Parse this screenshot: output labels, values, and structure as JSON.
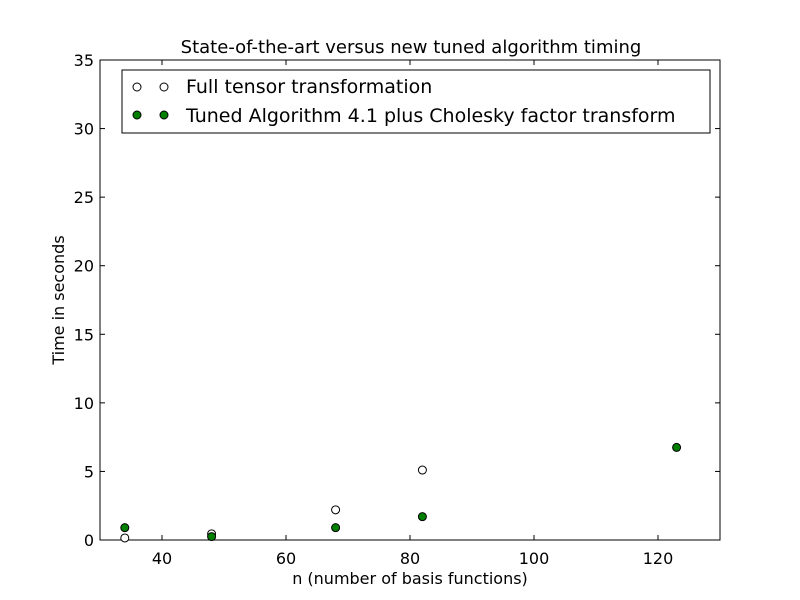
{
  "chart_data": {
    "type": "scatter",
    "title": "State-of-the-art versus new tuned algorithm timing",
    "xlabel": "n (number of basis functions)",
    "ylabel": "Time in seconds",
    "xlim": [
      30,
      130
    ],
    "ylim": [
      0,
      35
    ],
    "xticks": [
      40,
      60,
      80,
      100,
      120
    ],
    "yticks": [
      0,
      5,
      10,
      15,
      20,
      25,
      30,
      35
    ],
    "grid": false,
    "legend_position": "top-left",
    "series": [
      {
        "name": "Full tensor transformation",
        "marker_fill": "#ffffff",
        "marker_edge": "#000000",
        "points": [
          {
            "x": 34,
            "y": 0.15
          },
          {
            "x": 48,
            "y": 0.45
          },
          {
            "x": 68,
            "y": 2.2
          },
          {
            "x": 82,
            "y": 5.1
          }
        ]
      },
      {
        "name": "Tuned Algorithm 4.1 plus Cholesky factor transform",
        "marker_fill": "#007f00",
        "marker_edge": "#000000",
        "points": [
          {
            "x": 34,
            "y": 0.9
          },
          {
            "x": 48,
            "y": 0.25
          },
          {
            "x": 68,
            "y": 0.9
          },
          {
            "x": 82,
            "y": 1.7
          },
          {
            "x": 123,
            "y": 6.75
          }
        ]
      }
    ]
  }
}
